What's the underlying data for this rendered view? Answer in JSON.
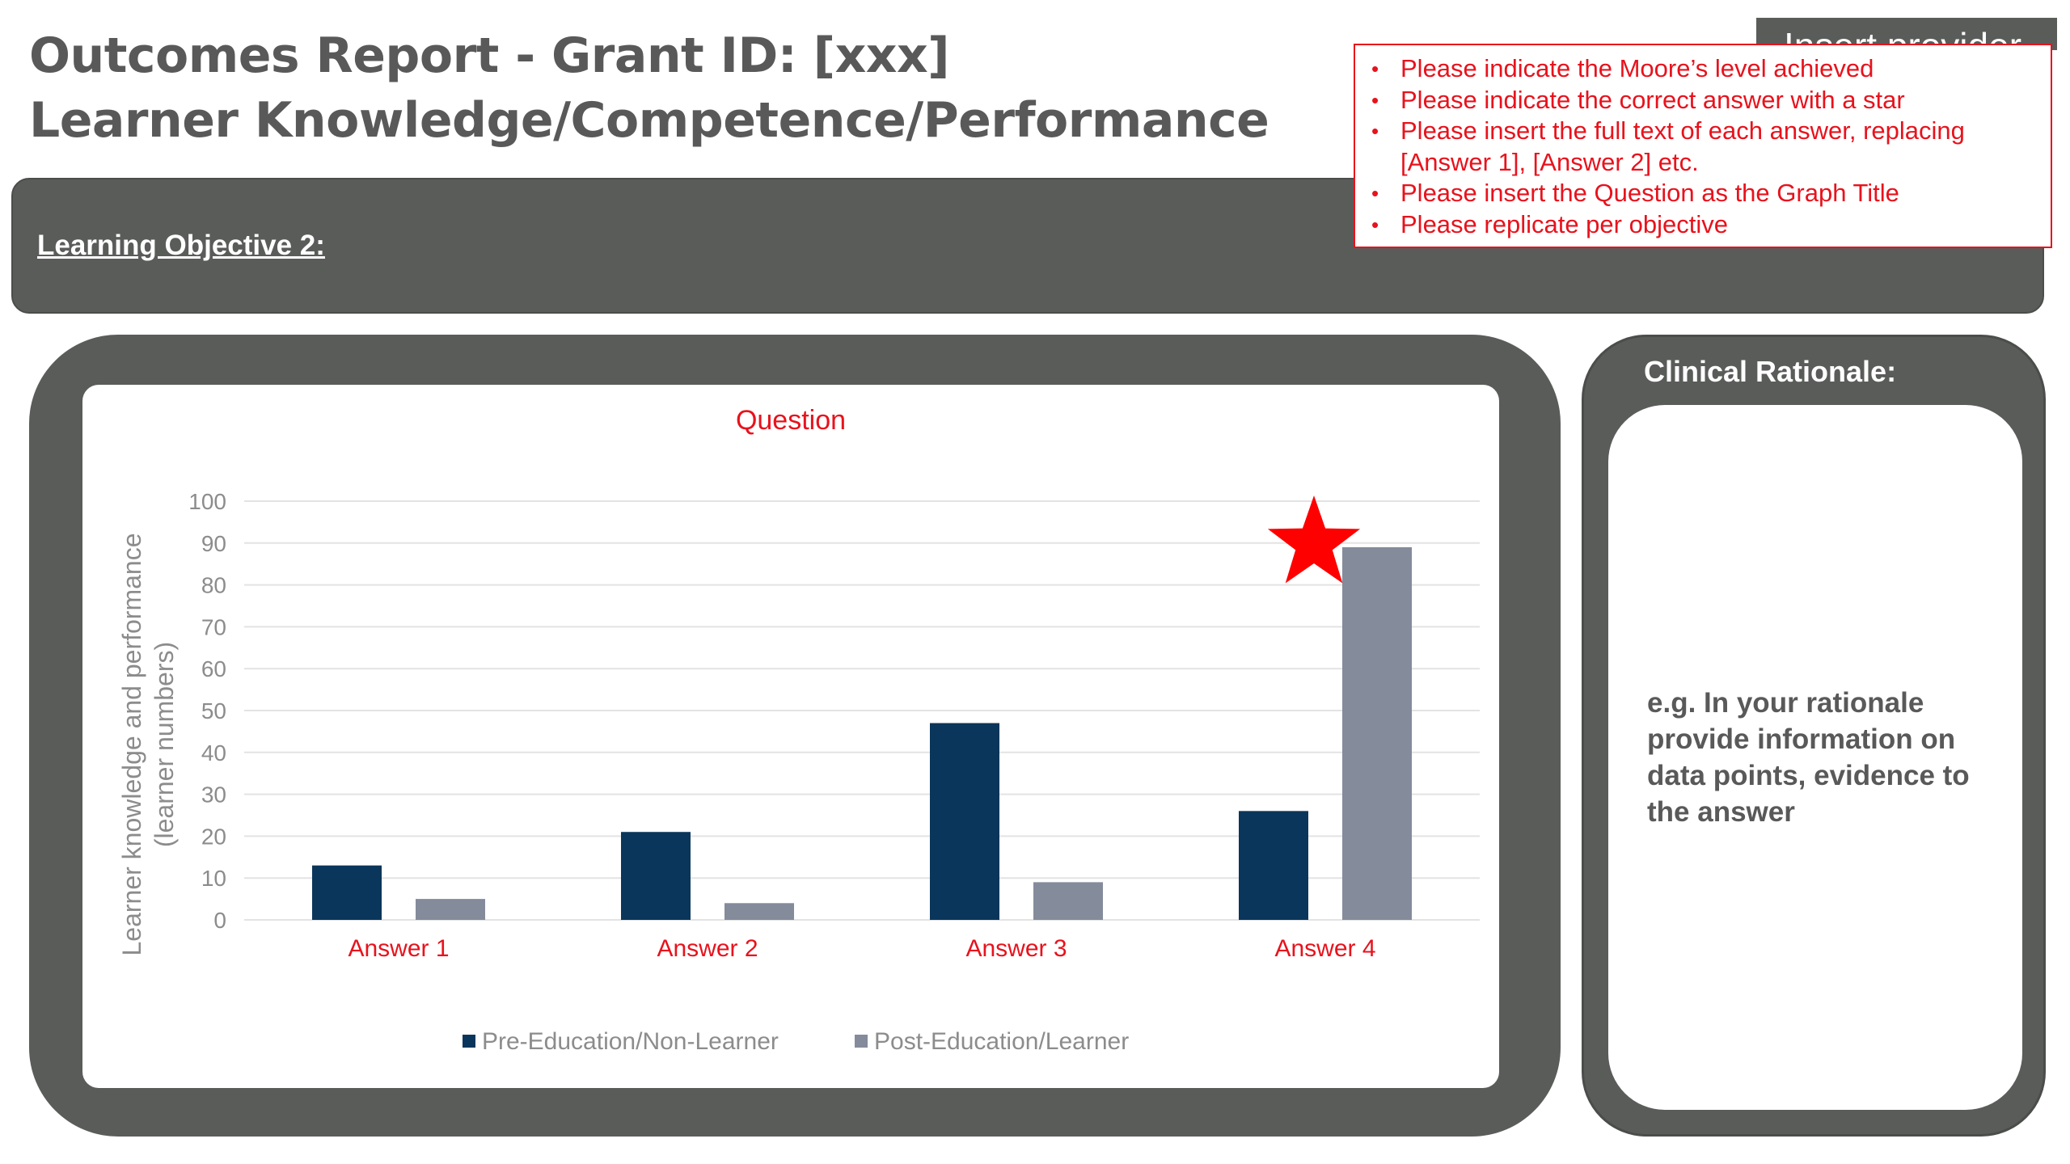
{
  "header": {
    "title_line1": "Outcomes Report - Grant ID: [xxx]",
    "title_line2": "Learner Knowledge/Competence/Performance",
    "provider_tab": "Insert provider"
  },
  "objective": {
    "label": "Learning Objective 2:"
  },
  "instructions": [
    "Please indicate the Moore’s level achieved",
    "Please indicate the correct answer with a star",
    "Please insert the full text of each answer, replacing [Answer 1], [Answer 2] etc.",
    "Please insert the Question as the Graph Title",
    "Please replicate per objective"
  ],
  "rationale": {
    "heading": "Clinical Rationale:",
    "body": "e.g. In your rationale provide information on data points, evidence to the answer"
  },
  "colors": {
    "frame": "#5a5c5a",
    "accent_red": "#e8121c",
    "pre_series": "#0b365b",
    "post_series": "#848b9b",
    "axis_text": "#8c8c8c"
  },
  "chart_data": {
    "type": "bar",
    "title": "Question",
    "categories": [
      "Answer 1",
      "Answer 2",
      "Answer 3",
      "Answer 4"
    ],
    "series": [
      {
        "name": "Pre-Education/Non-Learner",
        "values": [
          13,
          21,
          47,
          26
        ]
      },
      {
        "name": "Post-Education/Learner",
        "values": [
          5,
          4,
          9,
          89
        ]
      }
    ],
    "ylabel_lines": [
      "Learner knowledge and performance",
      "(learner numbers)"
    ],
    "xlabel": "",
    "ylim": [
      0,
      100
    ],
    "y_ticks": [
      0,
      10,
      20,
      30,
      40,
      50,
      60,
      70,
      80,
      90,
      100
    ],
    "grid": true,
    "legend_position": "bottom",
    "correct_answer_index": 3,
    "marker_icon": "star-icon"
  }
}
